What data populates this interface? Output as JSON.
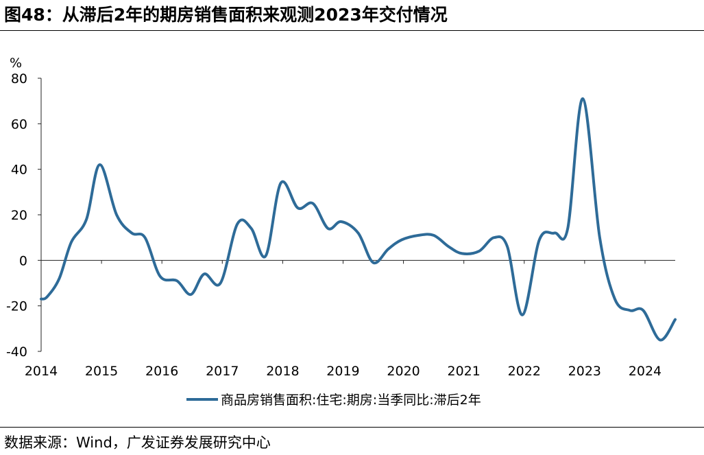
{
  "figure": {
    "title": "图48：从滞后2年的期房销售面积来观测2023年交付情况",
    "source": "数据来源：Wind，广发证券发展研究中心"
  },
  "chart_data": {
    "type": "line",
    "title": "图48：从滞后2年的期房销售面积来观测2023年交付情况",
    "xlabel": "",
    "ylabel": "%",
    "ylim": [
      -40,
      80
    ],
    "yticks": [
      80,
      60,
      40,
      20,
      0,
      -20,
      -40
    ],
    "xlim": [
      2014.0,
      2024.5
    ],
    "xticks": [
      "2014",
      "2015",
      "2016",
      "2017",
      "2018",
      "2019",
      "2020",
      "2021",
      "2022",
      "2023",
      "2024"
    ],
    "legend": {
      "position": "bottom",
      "label": "商品房销售面积:住宅:期房:当季同比:滞后2年"
    },
    "grid": false,
    "color": "#2E6B98",
    "series": [
      {
        "name": "商品房销售面积:住宅:期房:当季同比:滞后2年",
        "x": [
          2014.0,
          2014.1,
          2014.3,
          2014.5,
          2014.75,
          2014.97,
          2015.25,
          2015.5,
          2015.72,
          2015.97,
          2016.25,
          2016.48,
          2016.7,
          2016.97,
          2017.25,
          2017.48,
          2017.72,
          2017.97,
          2018.25,
          2018.5,
          2018.75,
          2018.97,
          2019.25,
          2019.5,
          2019.75,
          2019.97,
          2020.25,
          2020.5,
          2020.75,
          2020.97,
          2021.25,
          2021.5,
          2021.72,
          2021.97,
          2022.25,
          2022.5,
          2022.72,
          2022.97,
          2023.25,
          2023.5,
          2023.75,
          2023.97,
          2024.25,
          2024.5
        ],
        "values": [
          -17,
          -16,
          -8,
          8,
          18,
          42,
          20,
          12,
          10,
          -7,
          -9,
          -15,
          -6,
          -10,
          16,
          14,
          2,
          34,
          23,
          25,
          14,
          17,
          12,
          -1,
          5,
          9,
          11,
          11,
          6,
          3,
          4,
          10,
          6,
          -24,
          9,
          12,
          14,
          71,
          10,
          -17,
          -22,
          -22,
          -35,
          -26
        ]
      }
    ]
  }
}
